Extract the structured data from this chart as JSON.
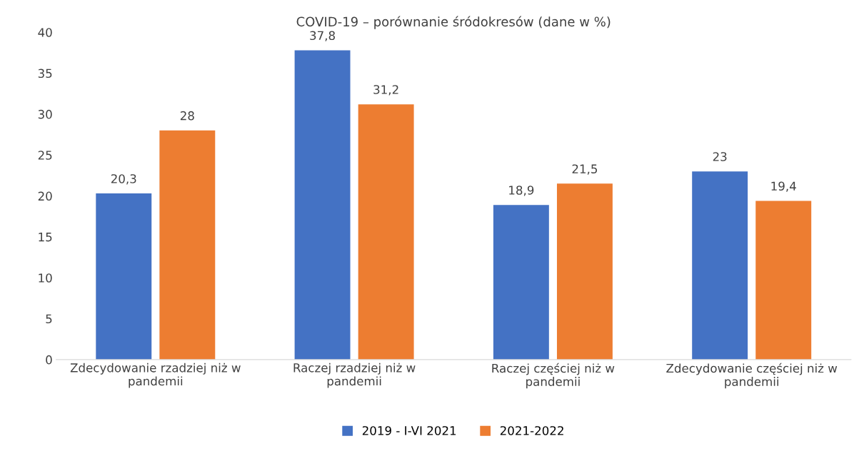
{
  "chart_data": {
    "type": "bar",
    "title": "COVID-19 – porównanie śródokresów (dane w %)",
    "categories": [
      "Zdecydowanie rzadziej niż w pandemii",
      "Raczej rzadziej niż w pandemii",
      "Raczej częściej niż w pandemii",
      "Zdecydowanie częściej niż w pandemii"
    ],
    "series": [
      {
        "name": "2019 - I-VI 2021",
        "color": "#4472c4",
        "values": [
          20.3,
          37.8,
          18.9,
          23
        ],
        "value_labels": [
          "20,3",
          "37,8",
          "18,9",
          "23"
        ]
      },
      {
        "name": "2021-2022",
        "color": "#ed7d31",
        "values": [
          28,
          31.2,
          21.5,
          19.4
        ],
        "value_labels": [
          "28",
          "31,2",
          "21,5",
          "19,4"
        ]
      }
    ],
    "ylim": [
      0,
      40
    ],
    "yticks": [
      0,
      5,
      10,
      15,
      20,
      25,
      30,
      35,
      40
    ],
    "grid": false,
    "legend": "bottom"
  }
}
